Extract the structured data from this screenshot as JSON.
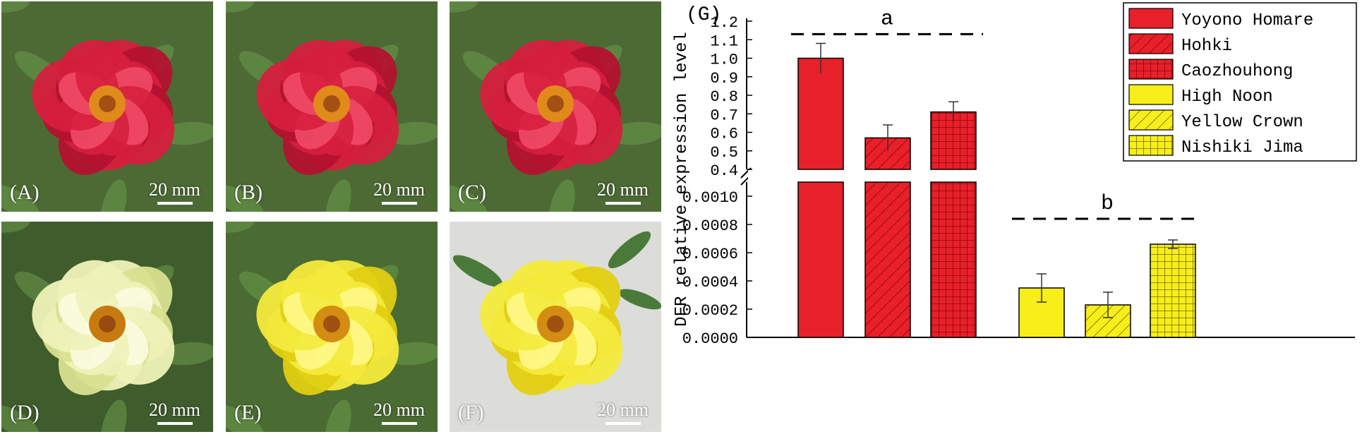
{
  "photos": [
    {
      "label": "(A)",
      "scale": "20 mm",
      "tone": "red"
    },
    {
      "label": "(B)",
      "scale": "20 mm",
      "tone": "red"
    },
    {
      "label": "(C)",
      "scale": "20 mm",
      "tone": "red"
    },
    {
      "label": "(D)",
      "scale": "20 mm",
      "tone": "cream"
    },
    {
      "label": "(E)",
      "scale": "20 mm",
      "tone": "yellow"
    },
    {
      "label": "(F)",
      "scale": "20 mm",
      "tone": "yellow"
    }
  ],
  "colors": {
    "red": "#e8202a",
    "yellow": "#f7ee1a",
    "leaf": "#4f7a3a"
  },
  "chart_data": {
    "type": "bar",
    "panel_label": "(G)",
    "ylabel": "DFR relative expression level",
    "broken_axis": true,
    "upper_ylim": [
      0.4,
      1.2
    ],
    "upper_ticks": [
      "0.4",
      "0.5",
      "0.6",
      "0.7",
      "0.8",
      "0.9",
      "1.0",
      "1.1",
      "1.2"
    ],
    "lower_ylim": [
      0,
      0.0011
    ],
    "lower_ticks": [
      "0.0000",
      "0.0002",
      "0.0004",
      "0.0006",
      "0.0008",
      "0.0010"
    ],
    "legend_position": "top-right",
    "series": [
      {
        "name": "Yoyono Homare",
        "value": 1.0,
        "error": 0.08,
        "color": "red",
        "pattern": "solid"
      },
      {
        "name": "Hohki",
        "value": 0.57,
        "error": 0.07,
        "color": "red",
        "pattern": "diagonal"
      },
      {
        "name": "Caozhouhong",
        "value": 0.71,
        "error": 0.055,
        "color": "red",
        "pattern": "grid"
      },
      {
        "name": "High Noon",
        "value": 0.00035,
        "error": 0.0001,
        "color": "yellow",
        "pattern": "solid"
      },
      {
        "name": "Yellow Crown",
        "value": 0.00023,
        "error": 9e-05,
        "color": "yellow",
        "pattern": "diagonal"
      },
      {
        "name": "Nishiki Jima",
        "value": 0.00066,
        "error": 3e-05,
        "color": "yellow",
        "pattern": "grid"
      }
    ],
    "annotations": [
      {
        "text": "a",
        "group": "red",
        "level": 1.13
      },
      {
        "text": "b",
        "group": "yellow",
        "level": 0.00084
      }
    ]
  }
}
